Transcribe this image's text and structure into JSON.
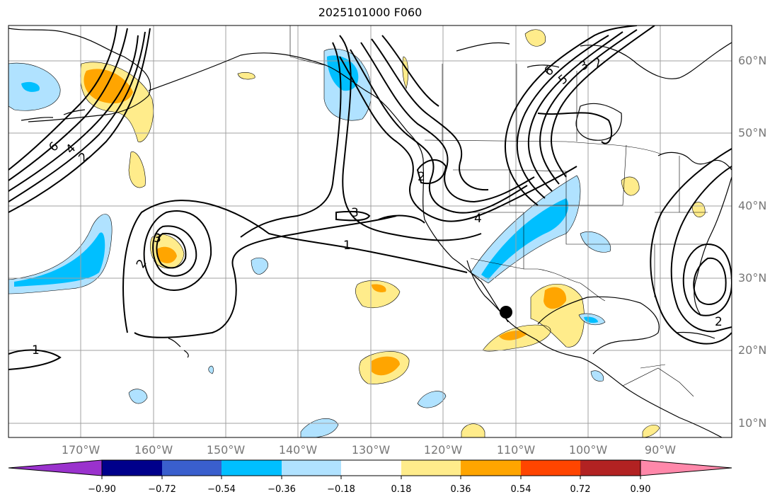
{
  "title": "2025101000 F060",
  "lat_labels": [
    "60°N",
    "50°N",
    "40°N",
    "30°N",
    "20°N",
    "10°N"
  ],
  "lon_labels": [
    "170°W",
    "160°W",
    "150°W",
    "140°W",
    "130°W",
    "120°W",
    "110°W",
    "100°W",
    "90°W"
  ],
  "contour_labels": [
    "6",
    "4",
    "2",
    "3",
    "2",
    "2",
    "3",
    "4",
    "1",
    "6",
    "5",
    "3",
    "2",
    "1",
    "2"
  ],
  "colorbar": {
    "colors": [
      "#9a32cd",
      "#00008b",
      "#3a5fcd",
      "#00bfff",
      "#b0e2ff",
      "#ffffff",
      "#ffec8b",
      "#ffa500",
      "#ff4500",
      "#b22222",
      "#ff88aa"
    ],
    "tick_labels": [
      "−0.90",
      "−0.72",
      "−0.54",
      "−0.36",
      "−0.18",
      "0.18",
      "0.36",
      "0.54",
      "0.72",
      "0.90"
    ]
  },
  "colors": {
    "positive_light": "#ffec8b",
    "positive_mid": "#ffa500",
    "negative_light": "#b0e2ff",
    "negative_mid": "#00bfff",
    "grid": "#a0a0a0",
    "contour": "#000000"
  },
  "marker": "black-dot"
}
